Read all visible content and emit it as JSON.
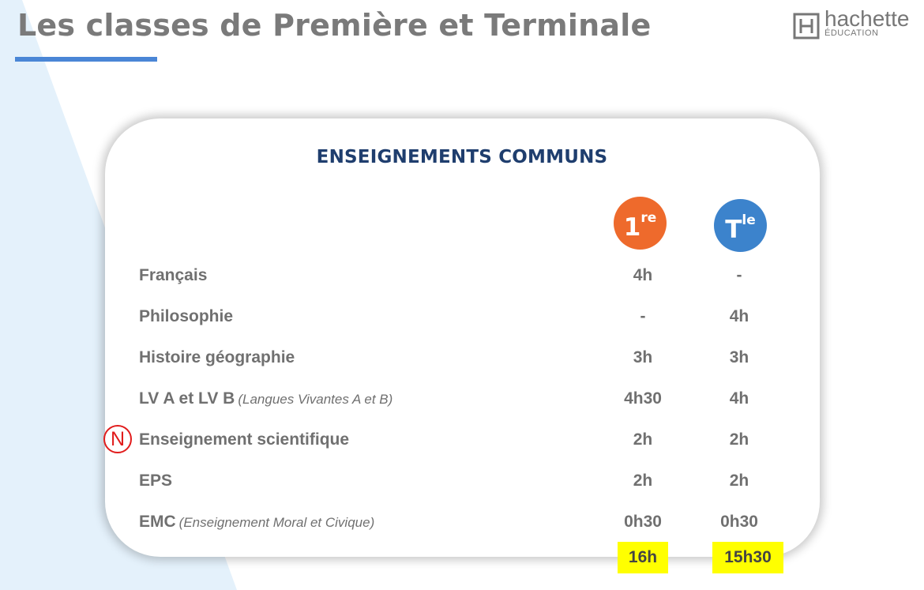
{
  "header": {
    "title": "Les classes de Première et Terminale",
    "logo_word": "hachette",
    "logo_sub": "ÉDUCATION"
  },
  "card": {
    "title": "ENSEIGNEMENTS COMMUNS",
    "columns": {
      "first": {
        "main": "1",
        "sup": "re",
        "color": "#ee6a2c"
      },
      "terminal": {
        "main": "T",
        "sup": "le",
        "color": "#3c83cc"
      }
    },
    "rows": [
      {
        "subject": "Français",
        "note": "",
        "first": "4h",
        "terminal": "-"
      },
      {
        "subject": "Philosophie",
        "note": "",
        "first": "-",
        "terminal": "4h"
      },
      {
        "subject": "Histoire géographie",
        "note": "",
        "first": "3h",
        "terminal": "3h"
      },
      {
        "subject": "LV A et LV B",
        "note": "(Langues Vivantes A et B)",
        "first": "4h30",
        "terminal": "4h"
      },
      {
        "subject": "Enseignement scientifique",
        "note": "",
        "first": "2h",
        "terminal": "2h",
        "new_marker": "N"
      },
      {
        "subject": "EPS",
        "note": "",
        "first": "2h",
        "terminal": "2h"
      },
      {
        "subject": "EMC",
        "note": "(Enseignement Moral et Civique)",
        "first": "0h30",
        "terminal": "0h30"
      }
    ],
    "totals": {
      "first": "16h",
      "terminal": "15h30",
      "highlight": "#ffff00"
    }
  }
}
